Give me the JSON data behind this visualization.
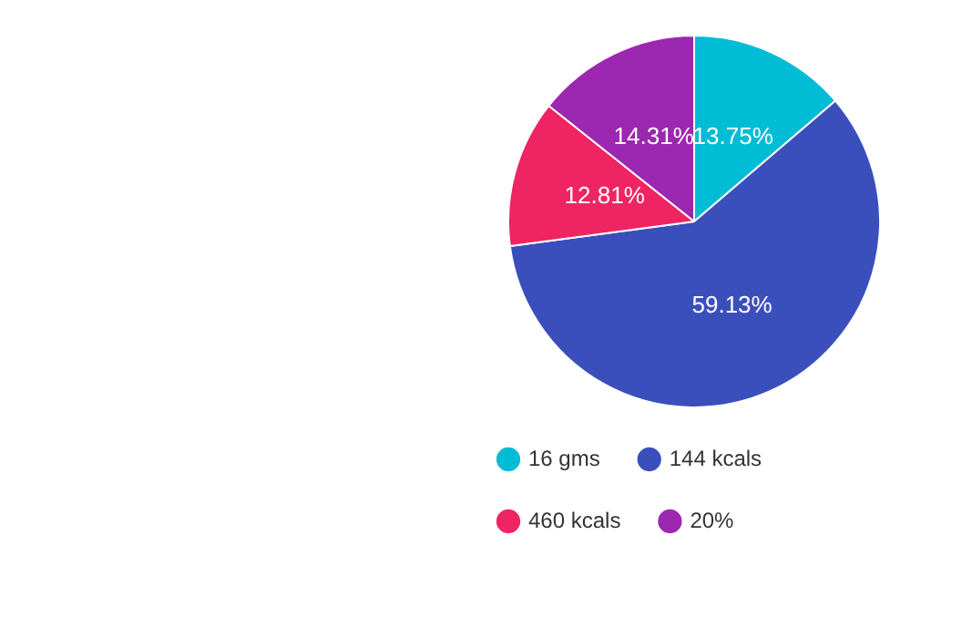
{
  "chart_data": {
    "type": "pie",
    "categories": [
      "16 gms",
      "144 kcals",
      "460 kcals",
      "20%"
    ],
    "values": [
      13.75,
      59.13,
      12.81,
      14.31
    ],
    "value_labels": [
      "13.75%",
      "59.13%",
      "12.81%",
      "14.31%"
    ],
    "colors": [
      "#00bcd4",
      "#3b4fbc",
      "#ef2462",
      "#9c27b0"
    ],
    "legend": "bottom left"
  }
}
